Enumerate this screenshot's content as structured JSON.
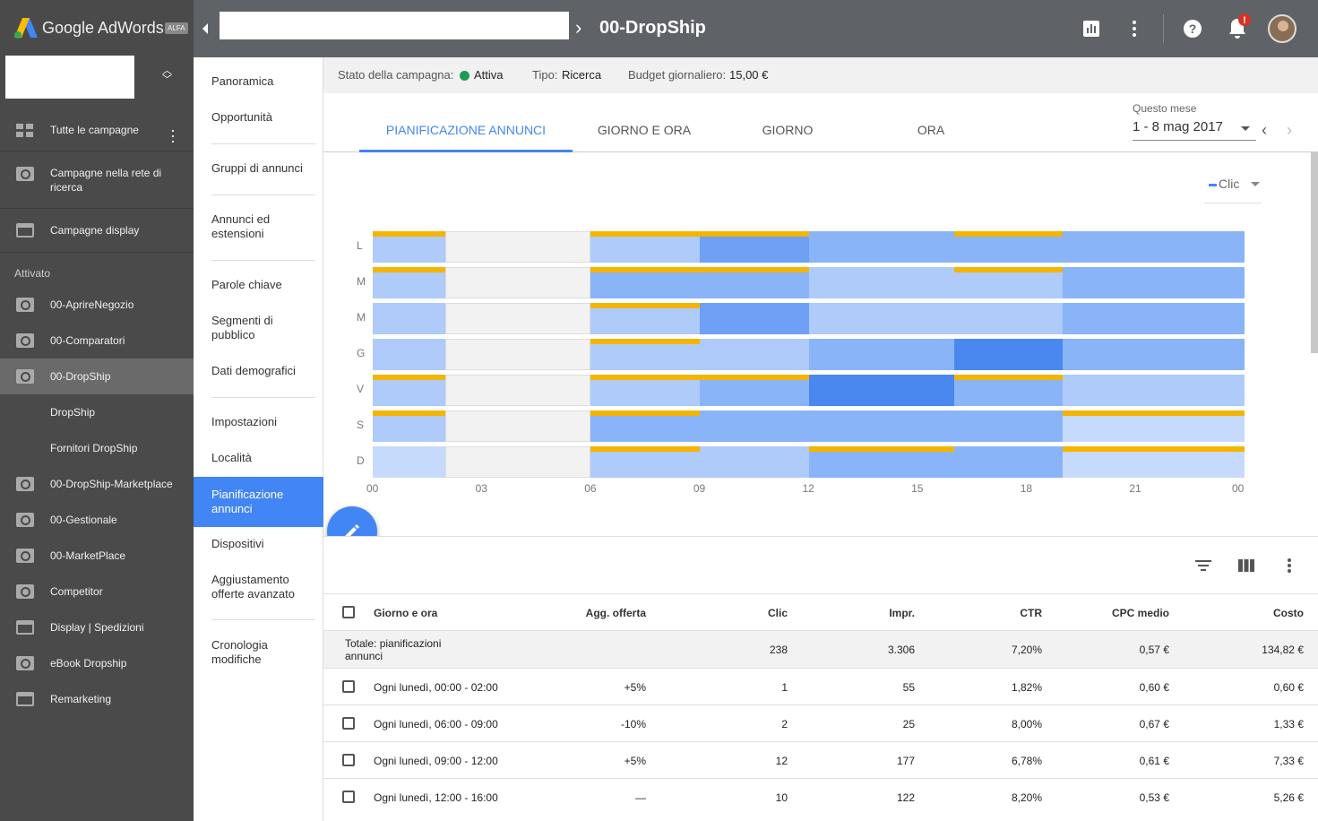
{
  "app": {
    "name": "Google AdWords",
    "badge": "ALFA"
  },
  "header": {
    "campaign_title": "00-DropShip"
  },
  "sidebar": {
    "all_campaigns": "Tutte le campagne",
    "search_campaigns": "Campagne nella rete di ricerca",
    "display_campaigns": "Campagne display",
    "section_label": "Attivato",
    "campaigns": [
      {
        "label": "00-AprireNegozio",
        "icon": "search-icon"
      },
      {
        "label": "00-Comparatori",
        "icon": "search-icon"
      },
      {
        "label": "00-DropShip",
        "icon": "search-icon",
        "active": true
      },
      {
        "label": "DropShip",
        "icon": ""
      },
      {
        "label": "Fornitori DropShip",
        "icon": ""
      },
      {
        "label": "00-DropShip-Marketplace",
        "icon": "search-icon"
      },
      {
        "label": "00-Gestionale",
        "icon": "search-icon"
      },
      {
        "label": "00-MarketPlace",
        "icon": "search-icon"
      },
      {
        "label": "Competitor",
        "icon": "search-icon"
      },
      {
        "label": "Display | Spedizioni",
        "icon": "display-icon"
      },
      {
        "label": "eBook Dropship",
        "icon": "search-icon"
      },
      {
        "label": "Remarketing",
        "icon": "display-icon"
      }
    ]
  },
  "subnav": {
    "items": [
      "Panoramica",
      "Opportunità",
      "Gruppi di annunci",
      "Annunci ed estensioni",
      "Parole chiave",
      "Segmenti di pubblico",
      "Dati demografici",
      "Impostazioni",
      "Località",
      "Pianificazione annunci",
      "Dispositivi",
      "Aggiustamento offerte avanzato",
      "Cronologia modifiche"
    ],
    "active": "Pianificazione annunci"
  },
  "status": {
    "campaign_state_label": "Stato della campagna:",
    "campaign_state_value": "Attiva",
    "type_label": "Tipo:",
    "type_value": "Ricerca",
    "budget_label": "Budget giornaliero:",
    "budget_value": "15,00 €",
    "state_color": "#1e9c50"
  },
  "tabs": [
    "PIANIFICAZIONE ANNUNCI",
    "GIORNO E ORA",
    "GIORNO",
    "ORA"
  ],
  "active_tab": "PIANIFICAZIONE ANNUNCI",
  "period": {
    "label": "Questo mese",
    "value": "1 - 8 mag 2017"
  },
  "metric_selector": "Clic",
  "chart_data": {
    "type": "heatmap",
    "metric": "Clic",
    "y_categories": [
      "L",
      "M",
      "M",
      "G",
      "V",
      "S",
      "D"
    ],
    "x_ticks": [
      "00",
      "03",
      "06",
      "09",
      "12",
      "15",
      "18",
      "21",
      "00"
    ],
    "x_range_hours": [
      0,
      24
    ],
    "time_blocks_hours": [
      [
        0,
        2
      ],
      [
        2,
        6
      ],
      [
        6,
        9
      ],
      [
        9,
        12
      ],
      [
        12,
        16
      ],
      [
        16,
        19
      ],
      [
        19,
        24
      ]
    ],
    "intensity_scale": "0 = nessuna pianificazione, 1-5 = clic crescenti",
    "intensity": [
      [
        2,
        0,
        2,
        4,
        3,
        3,
        3
      ],
      [
        2,
        0,
        3,
        3,
        2,
        2,
        3
      ],
      [
        2,
        0,
        2,
        4,
        2,
        2,
        3
      ],
      [
        2,
        0,
        2,
        2,
        3,
        5,
        3
      ],
      [
        2,
        0,
        2,
        3,
        5,
        3,
        2
      ],
      [
        2,
        0,
        3,
        3,
        3,
        3,
        1
      ],
      [
        1,
        0,
        2,
        2,
        3,
        3,
        1
      ]
    ],
    "bid_adjustment_marked": [
      [
        true,
        false,
        true,
        true,
        false,
        true,
        false
      ],
      [
        true,
        false,
        true,
        true,
        false,
        true,
        false
      ],
      [
        false,
        false,
        true,
        false,
        false,
        false,
        false
      ],
      [
        false,
        false,
        true,
        false,
        false,
        false,
        false
      ],
      [
        true,
        false,
        true,
        true,
        false,
        true,
        false
      ],
      [
        true,
        false,
        true,
        false,
        false,
        false,
        true
      ],
      [
        false,
        false,
        true,
        false,
        true,
        false,
        true
      ]
    ],
    "colors": {
      "0": "#f2f2f2",
      "1": "#c6dafc",
      "2": "#aecbfa",
      "3": "#8ab4f8",
      "4": "#6fa0f6",
      "5": "#4a88f0",
      "bid": "#f4b400"
    }
  },
  "table": {
    "columns": [
      "Giorno e ora",
      "Agg. offerta",
      "Clic",
      "Impr.",
      "CTR",
      "CPC medio",
      "Costo"
    ],
    "total": {
      "label": "Totale: pianificazioni annunci",
      "clic": "238",
      "impr": "3.306",
      "ctr": "7,20%",
      "cpc": "0,57 €",
      "cost": "134,82 €"
    },
    "rows": [
      {
        "label": "Ogni lunedì, 00:00 - 02:00",
        "bid": "+5%",
        "clic": "1",
        "impr": "55",
        "ctr": "1,82%",
        "cpc": "0,60 €",
        "cost": "0,60 €"
      },
      {
        "label": "Ogni lunedì, 06:00 - 09:00",
        "bid": "-10%",
        "clic": "2",
        "impr": "25",
        "ctr": "8,00%",
        "cpc": "0,67 €",
        "cost": "1,33 €"
      },
      {
        "label": "Ogni lunedì, 09:00 - 12:00",
        "bid": "+5%",
        "clic": "12",
        "impr": "177",
        "ctr": "6,78%",
        "cpc": "0,61 €",
        "cost": "7,33 €"
      },
      {
        "label": "Ogni lunedì, 12:00 - 16:00",
        "bid": "—",
        "clic": "10",
        "impr": "122",
        "ctr": "8,20%",
        "cpc": "0,53 €",
        "cost": "5,26 €"
      }
    ]
  }
}
